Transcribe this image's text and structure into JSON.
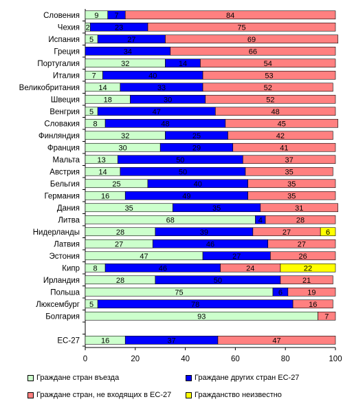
{
  "chart_data": {
    "type": "bar",
    "orientation": "horizontal",
    "stacked": true,
    "categories": [
      "Словения",
      "Чехия",
      "Испания",
      "Греция",
      "Португалия",
      "Италия",
      "Великобритания",
      "Швеция",
      "Венгрия",
      "Словакия",
      "Финляндия",
      "Франция",
      "Мальта",
      "Австрия",
      "Бельгия",
      "Германия",
      "Дания",
      "Литва",
      "Нидерланды",
      "Латвия",
      "Эстония",
      "Кипр",
      "Ирландия",
      "Польша",
      "Люксембург",
      "Болгария",
      "",
      "ЕС-27"
    ],
    "series": [
      {
        "name": "Граждане стран въезда",
        "color": "#ccffcc",
        "values": [
          9,
          2,
          5,
          null,
          32,
          7,
          14,
          18,
          5,
          8,
          32,
          30,
          13,
          14,
          25,
          16,
          35,
          68,
          28,
          27,
          47,
          8,
          28,
          75,
          5,
          93,
          null,
          16
        ]
      },
      {
        "name": "Граждане других стран ЕС-27",
        "color": "#0000ff",
        "values": [
          7,
          23,
          27,
          34,
          14,
          40,
          33,
          30,
          47,
          48,
          25,
          29,
          50,
          50,
          40,
          49,
          35,
          4,
          39,
          46,
          27,
          46,
          50,
          6,
          78,
          null,
          null,
          37
        ]
      },
      {
        "name": "Граждане стран, не входящих в ЕС-27",
        "color": "#ff8080",
        "values": [
          84,
          75,
          69,
          66,
          54,
          53,
          52,
          52,
          48,
          45,
          42,
          41,
          37,
          35,
          35,
          35,
          31,
          28,
          27,
          27,
          26,
          24,
          21,
          19,
          16,
          7,
          null,
          47
        ]
      },
      {
        "name": "Гражданство неизвестно",
        "color": "#ffff00",
        "values": [
          null,
          null,
          null,
          null,
          null,
          null,
          null,
          null,
          null,
          null,
          null,
          null,
          null,
          null,
          null,
          null,
          null,
          null,
          6,
          null,
          null,
          22,
          null,
          null,
          null,
          null,
          null,
          null
        ]
      }
    ],
    "xlim": [
      0,
      100
    ],
    "xticks": [
      0,
      20,
      40,
      60,
      80,
      100
    ],
    "grid": false,
    "legend_position": "bottom"
  }
}
